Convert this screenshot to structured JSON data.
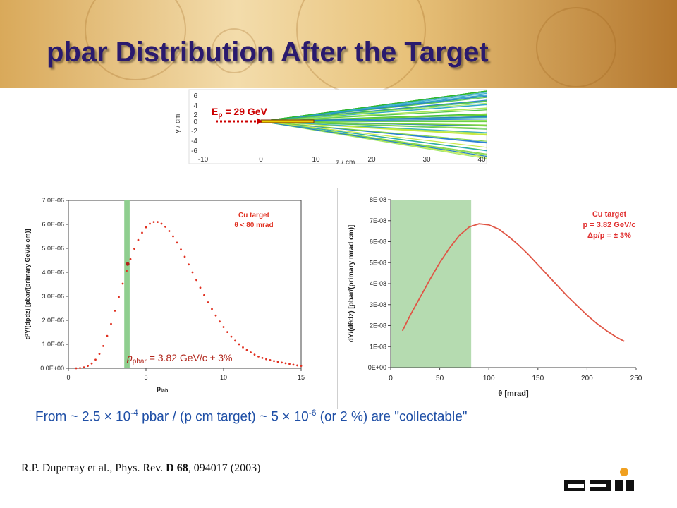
{
  "title": "pbar Distribution After the Target",
  "top_plot": {
    "y_label": "y / cm",
    "x_label": "z / cm",
    "y_ticks": [
      "6",
      "4",
      "2",
      "0",
      "-2",
      "-4",
      "-6"
    ],
    "x_ticks": [
      "-10",
      "0",
      "10",
      "20",
      "30",
      "40"
    ],
    "beam_label": "E",
    "beam_label_sub": "p",
    "beam_label_rest": " = 29 GeV",
    "beam_color": "#cc0000"
  },
  "chart_data": [
    {
      "type": "scatter",
      "xlabel": "p",
      "xlabel_sub": "lab",
      "ylabel": "d²Y/(dpdz) [pbar/(primary GeV/c cm)]",
      "x_ticks": [
        "0",
        "5",
        "10",
        "15"
      ],
      "y_ticks": [
        "0.0E+00",
        "1.0E-06",
        "2.0E-06",
        "3.0E-06",
        "4.0E-06",
        "5.0E-06",
        "6.0E-06",
        "7.0E-06"
      ],
      "xlim": [
        0,
        15
      ],
      "ylim": [
        0,
        7e-06
      ],
      "series": [
        {
          "color": "#e03020",
          "x": [
            0.5,
            0.75,
            1.0,
            1.25,
            1.5,
            1.75,
            2.0,
            2.25,
            2.5,
            2.75,
            3.0,
            3.25,
            3.5,
            3.75,
            4.0,
            4.25,
            4.5,
            4.75,
            5.0,
            5.25,
            5.5,
            5.75,
            6.0,
            6.25,
            6.5,
            6.75,
            7.0,
            7.25,
            7.5,
            7.75,
            8.0,
            8.25,
            8.5,
            8.75,
            9.0,
            9.25,
            9.5,
            9.75,
            10.0,
            10.25,
            10.5,
            10.75,
            11.0,
            11.25,
            11.5,
            11.75,
            12.0,
            12.25,
            12.5,
            12.75,
            13.0,
            13.25,
            13.5,
            13.75,
            14.0,
            14.25,
            14.5,
            14.75,
            15.0
          ],
          "y": [
            0.0,
            1e-08,
            4e-08,
            1e-07,
            2e-07,
            3.6e-07,
            6e-07,
            9.3e-07,
            1.35e-06,
            1.85e-06,
            2.4e-06,
            2.97e-06,
            3.53e-06,
            4.06e-06,
            4.55e-06,
            4.98e-06,
            5.35e-06,
            5.65e-06,
            5.88e-06,
            6.03e-06,
            6.1e-06,
            6.1e-06,
            6.03e-06,
            5.9e-06,
            5.72e-06,
            5.5e-06,
            5.24e-06,
            4.95e-06,
            4.65e-06,
            4.33e-06,
            4e-06,
            3.68e-06,
            3.36e-06,
            3.05e-06,
            2.75e-06,
            2.47e-06,
            2.2e-06,
            1.95e-06,
            1.72e-06,
            1.51e-06,
            1.32e-06,
            1.15e-06,
            1e-06,
            8.7e-07,
            7.6e-07,
            6.6e-07,
            5.7e-07,
            4.9e-07,
            4.3e-07,
            3.8e-07,
            3.4e-07,
            3e-07,
            2.7e-07,
            2.4e-07,
            2.1e-07,
            1.8e-07,
            1.5e-07,
            1.2e-07,
            1e-07
          ]
        }
      ],
      "highlight_point": {
        "x": 3.82,
        "y": 4.35e-06,
        "color": "#b0241a"
      },
      "band": {
        "from": 3.6,
        "to": 3.95,
        "color": "#8fce8f"
      },
      "legend": [
        "Cu target",
        "θ < 80 mrad"
      ],
      "legend_color": "#e03020",
      "annotation": {
        "pre": "p",
        "sub": "pbar",
        "post": " = 3.82 GeV/c ± 3%",
        "color": "#b0241a"
      }
    },
    {
      "type": "line",
      "xlabel": "θ [mrad]",
      "ylabel": "dY/(dθdz) [pbar/(primary mrad cm)]",
      "x_ticks": [
        "0",
        "50",
        "100",
        "150",
        "200",
        "250"
      ],
      "y_ticks": [
        "0E+00",
        "1E-08",
        "2E-08",
        "3E-08",
        "4E-08",
        "5E-08",
        "6E-08",
        "7E-08",
        "8E-08"
      ],
      "xlim": [
        0,
        250
      ],
      "ylim": [
        0,
        8e-08
      ],
      "series": [
        {
          "color": "#e05545",
          "x": [
            12,
            20,
            30,
            40,
            50,
            60,
            70,
            80,
            90,
            100,
            110,
            120,
            130,
            140,
            150,
            160,
            170,
            180,
            190,
            200,
            210,
            220,
            230,
            238
          ],
          "y": [
            1.75e-08,
            2.5e-08,
            3.35e-08,
            4.2e-08,
            5e-08,
            5.7e-08,
            6.3e-08,
            6.7e-08,
            6.85e-08,
            6.8e-08,
            6.6e-08,
            6.25e-08,
            5.85e-08,
            5.4e-08,
            4.9e-08,
            4.4e-08,
            3.9e-08,
            3.4e-08,
            2.95e-08,
            2.5e-08,
            2.1e-08,
            1.75e-08,
            1.45e-08,
            1.25e-08
          ]
        }
      ],
      "band": {
        "from": 0,
        "to": 82,
        "color": "#b5dbb0"
      },
      "legend": [
        "Cu target",
        "p = 3.82 GeV/c",
        "Δp/p = ± 3%"
      ],
      "legend_color": "#e03030"
    }
  ],
  "statement": {
    "p1": "From ~ 2.5 × 10",
    "e1": "-4",
    "p2": " pbar / (p cm target) ~ 5 × 10",
    "e2": "-6",
    "p3": " (or 2 %) are \"collectable\""
  },
  "reference": {
    "pre": "R.P. Duperray et al., Phys. Rev. ",
    "bold": "D 68",
    "post": ", 094017 (2003)"
  },
  "logo": {
    "text": "GSI",
    "dot_color": "#f0a020"
  }
}
